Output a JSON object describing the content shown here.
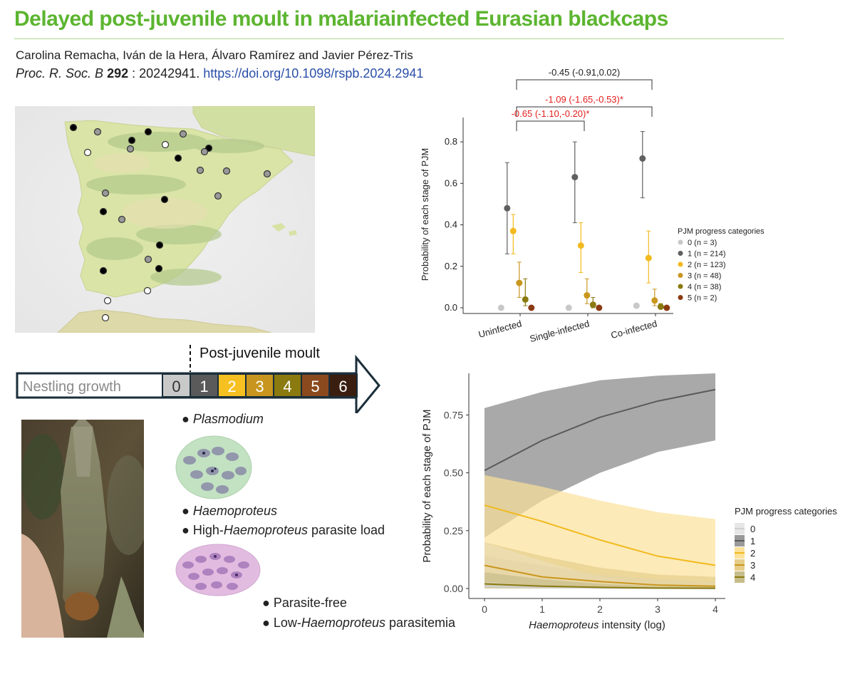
{
  "header": {
    "title": "Delayed post-juvenile moult in malariainfected Eurasian blackcaps",
    "authors": "Carolina Remacha, Iván de la Hera, Álvaro Ramírez and Javier Pérez-Tris",
    "journal": "Proc. R. Soc. B",
    "volume": "292",
    "article": " : 20242941. ",
    "doi": "https://doi.org/10.1098/rspb.2024.2941"
  },
  "moult_bar": {
    "label": "Post-juvenile moult",
    "nestling": "Nestling growth",
    "stages": [
      "0",
      "1",
      "2",
      "3",
      "4",
      "5",
      "6"
    ],
    "colors": [
      "#c9c9c9",
      "#5a5a5a",
      "#f5c020",
      "#c8961e",
      "#8a7a10",
      "#8b4a1e",
      "#3a1e10"
    ]
  },
  "legend_text": {
    "plasmodium": "Plasmodium",
    "haemoproteus": "Haemoproteus",
    "high_load_prefix": "High-",
    "high_load_genus": "Haemoproteus",
    "high_load_suffix": " parasite load",
    "parasite_free": "Parasite-free",
    "low_prefix": "Low-",
    "low_genus": "Haemoproteus",
    "low_suffix": " parasitemia"
  },
  "map_points": {
    "colors": {
      "black": "#000000",
      "grey": "#999999",
      "white": "#ffffff"
    }
  },
  "chart_data": [
    {
      "type": "scatter",
      "title": "",
      "ylabel": "Probability of each stage of PJM",
      "xlabel": "",
      "ylim": [
        0,
        0.9
      ],
      "yticks": [
        "0.0",
        "0.2",
        "0.4",
        "0.6",
        "0.8"
      ],
      "categories": [
        "Uninfected",
        "Single-infected",
        "Co-infected"
      ],
      "legend_title": "PJM progress categories",
      "series": [
        {
          "name": "0 (n = 3)",
          "color": "#c8c8c8",
          "values": [
            0.0,
            0.0,
            0.01
          ],
          "lower": [
            0.0,
            0.0,
            0.0
          ],
          "upper": [
            0.0,
            0.0,
            0.02
          ]
        },
        {
          "name": "1 (n = 214)",
          "color": "#5f5f5f",
          "values": [
            0.48,
            0.63,
            0.72
          ],
          "lower": [
            0.26,
            0.41,
            0.53
          ],
          "upper": [
            0.7,
            0.8,
            0.85
          ]
        },
        {
          "name": "2 (n = 123)",
          "color": "#f2b91f",
          "values": [
            0.37,
            0.3,
            0.24
          ],
          "lower": [
            0.26,
            0.17,
            0.12
          ],
          "upper": [
            0.45,
            0.41,
            0.37
          ]
        },
        {
          "name": "3 (n = 48)",
          "color": "#c9961e",
          "values": [
            0.12,
            0.06,
            0.035
          ],
          "lower": [
            0.05,
            0.02,
            0.01
          ],
          "upper": [
            0.22,
            0.14,
            0.09
          ]
        },
        {
          "name": "4 (n = 38)",
          "color": "#8a7a10",
          "values": [
            0.04,
            0.015,
            0.005
          ],
          "lower": [
            0.01,
            0.0,
            0.0
          ],
          "upper": [
            0.14,
            0.05,
            0.02
          ]
        },
        {
          "name": "5 (n = 2)",
          "color": "#8b3a12",
          "values": [
            0.0,
            0.0,
            0.0
          ],
          "lower": [
            0.0,
            0.0,
            0.0
          ],
          "upper": [
            0.0,
            0.0,
            0.0
          ]
        }
      ],
      "annotations": [
        {
          "text": "-0.45 (-0.91,0.02)",
          "color": "#222222",
          "from": "Uninfected",
          "to": "Co-infected",
          "level": 3
        },
        {
          "text": "-1.09 (-1.65,-0.53)*",
          "color": "#e4201e",
          "from": "Uninfected",
          "to": "Co-infected",
          "level": 2
        },
        {
          "text": "-0.65 (-1.10,-0.20)*",
          "color": "#e4201e",
          "from": "Uninfected",
          "to": "Single-infected",
          "level": 1
        }
      ]
    },
    {
      "type": "area",
      "title": "",
      "ylabel": "Probability of each stage of PJM",
      "xlabel_italic": "Haemoproteus",
      "xlabel_rest": " intensity (log)",
      "xlim": [
        0,
        4
      ],
      "ylim": [
        0,
        0.93
      ],
      "xticks": [
        "0",
        "1",
        "2",
        "3",
        "4"
      ],
      "yticks": [
        "0.00",
        "0.25",
        "0.50",
        "0.75"
      ],
      "legend_title": "PJM progress categories",
      "series": [
        {
          "name": "0",
          "color": "#d0d0d0",
          "fill": "#e6e6e6",
          "x": [
            0,
            1,
            2,
            3,
            4
          ],
          "values": [
            0.01,
            0.005,
            0.002,
            0.001,
            0.0
          ],
          "lower": [
            0.0,
            0.0,
            0.0,
            0.0,
            0.0
          ],
          "upper": [
            0.14,
            0.1,
            0.06,
            0.04,
            0.03
          ]
        },
        {
          "name": "1",
          "color": "#5a5a5a",
          "fill": "#9a9a9a",
          "x": [
            0,
            1,
            2,
            3,
            4
          ],
          "values": [
            0.51,
            0.64,
            0.74,
            0.81,
            0.86
          ],
          "lower": [
            0.22,
            0.38,
            0.5,
            0.59,
            0.64
          ],
          "upper": [
            0.78,
            0.85,
            0.9,
            0.92,
            0.93
          ]
        },
        {
          "name": "2",
          "color": "#f2b91f",
          "fill": "#fbe19a",
          "x": [
            0,
            1,
            2,
            3,
            4
          ],
          "values": [
            0.36,
            0.29,
            0.21,
            0.14,
            0.1
          ],
          "lower": [
            0.2,
            0.12,
            0.05,
            0.02,
            0.01
          ],
          "upper": [
            0.49,
            0.44,
            0.38,
            0.33,
            0.3
          ]
        },
        {
          "name": "3",
          "color": "#c9961e",
          "fill": "#e6cd8a",
          "x": [
            0,
            1,
            2,
            3,
            4
          ],
          "values": [
            0.1,
            0.05,
            0.03,
            0.015,
            0.01
          ],
          "lower": [
            0.03,
            0.01,
            0.0,
            0.0,
            0.0
          ],
          "upper": [
            0.2,
            0.14,
            0.09,
            0.06,
            0.05
          ]
        },
        {
          "name": "4",
          "color": "#8a7a10",
          "fill": "#c7bd8a",
          "x": [
            0,
            1,
            2,
            3,
            4
          ],
          "values": [
            0.02,
            0.01,
            0.005,
            0.002,
            0.001
          ],
          "lower": [
            0.0,
            0.0,
            0.0,
            0.0,
            0.0
          ],
          "upper": [
            0.07,
            0.04,
            0.02,
            0.01,
            0.01
          ]
        }
      ]
    }
  ]
}
